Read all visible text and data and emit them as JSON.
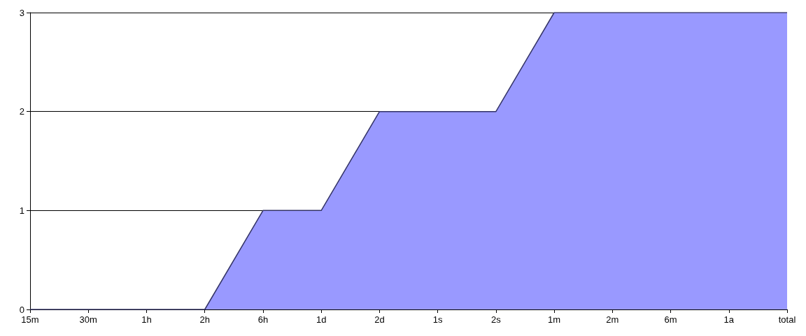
{
  "chart_data": {
    "type": "area",
    "categories": [
      "15m",
      "30m",
      "1h",
      "2h",
      "6h",
      "1d",
      "2d",
      "1s",
      "2s",
      "1m",
      "2m",
      "6m",
      "1a",
      "total"
    ],
    "values": [
      0,
      0,
      0,
      0,
      1,
      1,
      2,
      2,
      2,
      3,
      3,
      3,
      3,
      3
    ],
    "color": "#9999ff",
    "ylim": [
      0,
      3
    ],
    "yticks": [
      0,
      1,
      2,
      3
    ],
    "grid": "y",
    "marker": "none"
  }
}
